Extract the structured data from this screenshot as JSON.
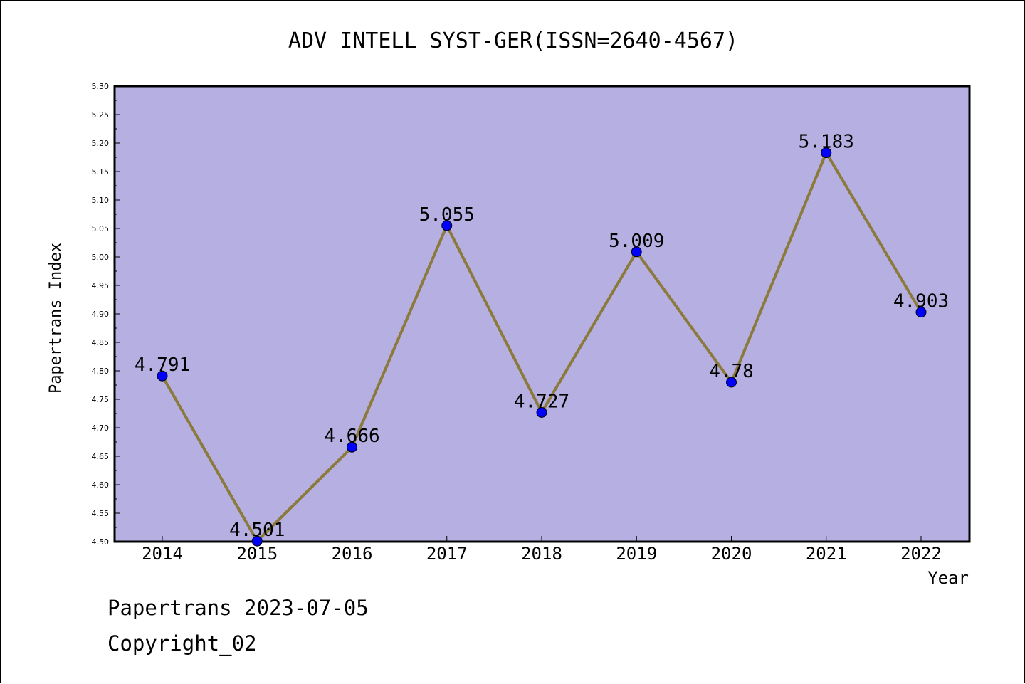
{
  "footer": {
    "line1": "Papertrans 2023-07-05",
    "line2": "Copyright_02"
  },
  "chart_data": {
    "type": "line",
    "title": "ADV INTELL SYST-GER(ISSN=2640-4567)",
    "xlabel": "Year",
    "ylabel": "Papertrans Index",
    "x": [
      "2014",
      "2015",
      "2016",
      "2017",
      "2018",
      "2019",
      "2020",
      "2021",
      "2022"
    ],
    "values": [
      4.791,
      4.501,
      4.666,
      5.055,
      4.727,
      5.009,
      4.78,
      5.183,
      4.903
    ],
    "data_labels": [
      "4.791",
      "4.501",
      "4.666",
      "5.055",
      "4.727",
      "5.009",
      "4.78",
      "5.183",
      "4.903"
    ],
    "ylim": [
      4.5,
      5.3
    ],
    "yticks": [
      "4.50",
      "4.55",
      "4.60",
      "4.65",
      "4.70",
      "4.75",
      "4.80",
      "4.85",
      "4.90",
      "4.95",
      "5.00",
      "5.05",
      "5.10",
      "5.15",
      "5.20",
      "5.25",
      "5.30"
    ],
    "grid": false,
    "colors": {
      "plot_background": "#b5afe2",
      "line": "#8c7a3c",
      "marker": "#0000ff"
    }
  }
}
